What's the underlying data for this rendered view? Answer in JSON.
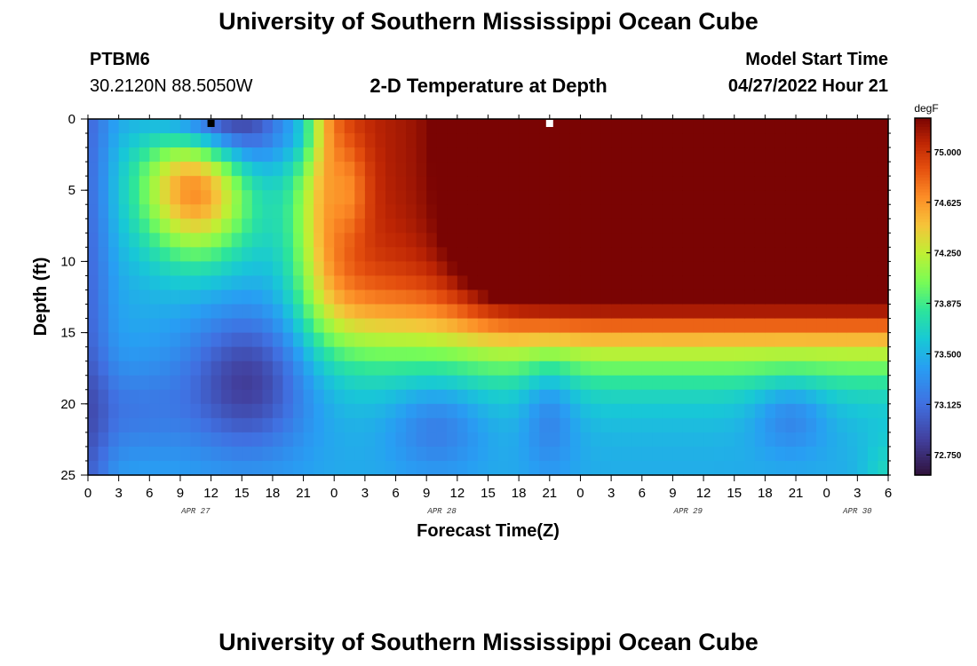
{
  "header": {
    "title": "University of Southern Mississippi Ocean Cube",
    "station_id": "PTBM6",
    "coordinates": "30.2120N  88.5050W",
    "plot_title": "2-D Temperature at Depth",
    "model_start_label": "Model Start Time",
    "model_start_value": "04/27/2022 Hour 21"
  },
  "footer": {
    "title": "University of Southern Mississippi Ocean Cube"
  },
  "chart_data": {
    "type": "heatmap",
    "title": "2-D Temperature at Depth",
    "xlabel": "Forecast Time(Z)",
    "ylabel": "Depth (ft)",
    "x_tick_labels": [
      "0",
      "3",
      "6",
      "9",
      "12",
      "15",
      "18",
      "21",
      "0",
      "3",
      "6",
      "9",
      "12",
      "15",
      "18",
      "21",
      "0",
      "3",
      "6",
      "9",
      "12",
      "15",
      "18",
      "21",
      "0",
      "3",
      "6"
    ],
    "date_labels": [
      {
        "label": "APR 27",
        "tick_index": 3.5
      },
      {
        "label": "APR 28",
        "tick_index": 11.5
      },
      {
        "label": "APR 29",
        "tick_index": 19.5
      },
      {
        "label": "APR 30",
        "tick_index": 25
      }
    ],
    "y_ticks": [
      0,
      5,
      10,
      15,
      20,
      25
    ],
    "ylim": [
      0,
      25
    ],
    "y_reversed": true,
    "x_hours_range": [
      0,
      78
    ],
    "colorbar": {
      "unit": "degF",
      "ticks": [
        "75.000",
        "74.625",
        "74.250",
        "73.875",
        "73.500",
        "73.125",
        "72.750"
      ],
      "range": [
        72.6,
        75.25
      ]
    },
    "markers": [
      {
        "hour": 12,
        "depth": 0.2,
        "color": "#000000"
      },
      {
        "hour": 45,
        "depth": 0.2,
        "color": "#ffffff"
      }
    ]
  }
}
